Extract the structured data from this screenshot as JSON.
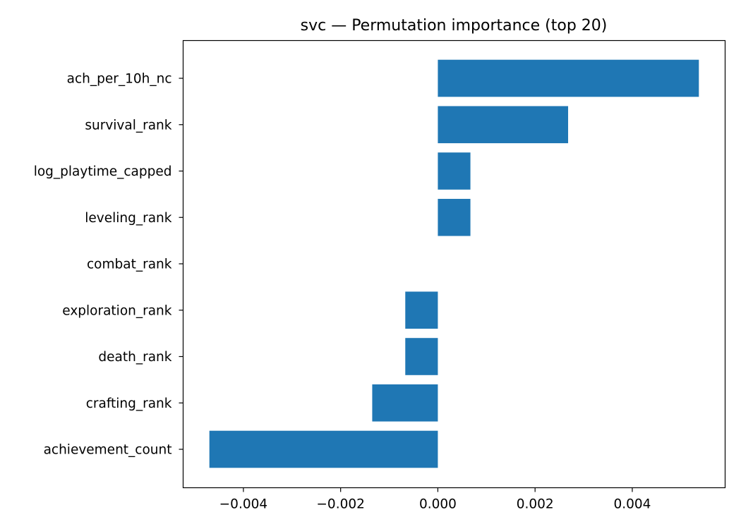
{
  "chart_data": {
    "type": "bar",
    "orientation": "horizontal",
    "title": "svc — Permutation importance (top 20)",
    "xlabel": "",
    "ylabel": "",
    "categories": [
      "ach_per_10h_nc",
      "survival_rank",
      "log_playtime_capped",
      "leveling_rank",
      "combat_rank",
      "exploration_rank",
      "death_rank",
      "crafting_rank",
      "achievement_count"
    ],
    "values": [
      0.00537,
      0.00268,
      0.00067,
      0.00067,
      0.0,
      -0.00067,
      -0.00067,
      -0.00135,
      -0.0047
    ],
    "xlim": [
      -0.00524,
      0.00591
    ],
    "xticks": [
      -0.004,
      -0.002,
      0.0,
      0.002,
      0.004
    ],
    "xtick_labels": [
      "−0.004",
      "−0.002",
      "0.000",
      "0.002",
      "0.004"
    ],
    "bar_color": "#1f77b4",
    "grid": false,
    "legend": "none"
  }
}
